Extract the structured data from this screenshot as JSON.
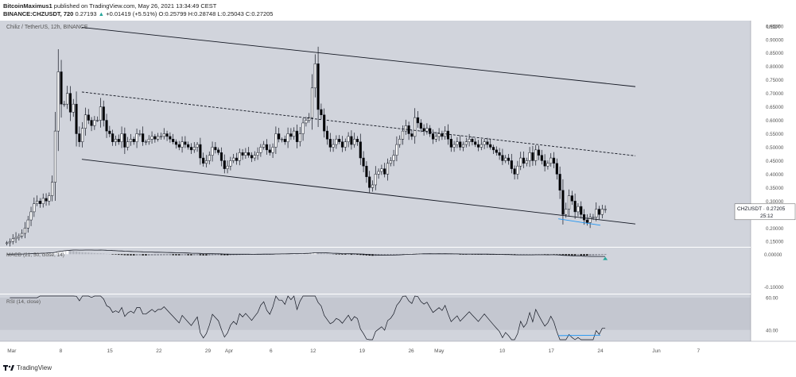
{
  "header": {
    "author": "BitcoinMaximus1",
    "published_text": "published on TradingView.com, May 26, 2021 13:34:49 CEST",
    "symbol": "BINANCE:CHZUSDT, 720",
    "change_arrow": "▲",
    "ohlc": {
      "o_label": "O:",
      "o": "0.25799",
      "h_label": "H:",
      "h": "0.28748",
      "l_label": "L:",
      "l": "0.25043",
      "c_label": "C:",
      "c": "0.27205"
    },
    "last": "0.27193",
    "change": "+0.01419 (+5.51%)"
  },
  "colors": {
    "price_bg": "#d1d4dc",
    "panel_bg": "#d1d4dc",
    "rsi_band": "#c4c7d0",
    "up_candle": "#ffffff",
    "down_candle": "#000000",
    "channel": "#131722",
    "support": "#2196f3",
    "macd_signal": "#131722",
    "rsi_line": "#131722",
    "arrow": "#26a69a"
  },
  "chart_data": {
    "type": "candlestick",
    "title": "Chiliz / TetherUS, 12h, BINANCE",
    "currency_label": "USDT",
    "ylim": [
      0.13,
      0.97
    ],
    "yticks": [
      0.15,
      0.2,
      0.25,
      0.3,
      0.35,
      0.4,
      0.45,
      0.5,
      0.55,
      0.6,
      0.65,
      0.7,
      0.75,
      0.8,
      0.85,
      0.9,
      0.95
    ],
    "ytick_labels": [
      "0.15000",
      "0.20000",
      "0.25000",
      "0.30000",
      "0.35000",
      "0.40000",
      "0.45000",
      "0.50000",
      "0.55000",
      "0.60000",
      "0.65000",
      "0.70000",
      "0.75000",
      "0.80000",
      "0.85000",
      "0.90000",
      "0.95000"
    ],
    "x_labels": [
      "Mar",
      "8",
      "15",
      "22",
      "29",
      "Apr",
      "6",
      "12",
      "19",
      "26",
      "May",
      "10",
      "17",
      "24",
      "Jun",
      "7"
    ],
    "x_label_days": [
      1,
      8,
      15,
      22,
      29,
      32,
      38,
      44,
      51,
      58,
      62,
      71,
      78,
      85,
      93,
      99
    ],
    "x_day_range": [
      0,
      106
    ],
    "last_price_label": "CHZUSDT",
    "last_price": "0.27205",
    "countdown": "25:12",
    "closes": [
      0.145,
      0.15,
      0.16,
      0.165,
      0.17,
      0.18,
      0.2,
      0.23,
      0.26,
      0.29,
      0.3,
      0.29,
      0.31,
      0.3,
      0.32,
      0.37,
      0.56,
      0.78,
      0.66,
      0.66,
      0.7,
      0.63,
      0.66,
      0.55,
      0.52,
      0.57,
      0.62,
      0.6,
      0.58,
      0.6,
      0.6,
      0.65,
      0.6,
      0.56,
      0.55,
      0.52,
      0.53,
      0.52,
      0.55,
      0.5,
      0.52,
      0.53,
      0.52,
      0.55,
      0.55,
      0.52,
      0.52,
      0.53,
      0.54,
      0.53,
      0.54,
      0.54,
      0.55,
      0.54,
      0.53,
      0.52,
      0.51,
      0.5,
      0.52,
      0.51,
      0.5,
      0.49,
      0.5,
      0.51,
      0.46,
      0.44,
      0.45,
      0.47,
      0.5,
      0.49,
      0.48,
      0.45,
      0.42,
      0.43,
      0.45,
      0.46,
      0.45,
      0.48,
      0.47,
      0.48,
      0.47,
      0.46,
      0.47,
      0.48,
      0.5,
      0.51,
      0.49,
      0.48,
      0.5,
      0.55,
      0.53,
      0.53,
      0.52,
      0.55,
      0.54,
      0.56,
      0.52,
      0.55,
      0.59,
      0.6,
      0.61,
      0.72,
      0.81,
      0.64,
      0.62,
      0.56,
      0.53,
      0.5,
      0.51,
      0.53,
      0.52,
      0.5,
      0.52,
      0.54,
      0.51,
      0.53,
      0.52,
      0.46,
      0.43,
      0.39,
      0.35,
      0.36,
      0.4,
      0.41,
      0.42,
      0.4,
      0.44,
      0.45,
      0.47,
      0.51,
      0.53,
      0.56,
      0.58,
      0.55,
      0.54,
      0.61,
      0.59,
      0.57,
      0.56,
      0.57,
      0.55,
      0.53,
      0.54,
      0.55,
      0.54,
      0.56,
      0.53,
      0.5,
      0.51,
      0.52,
      0.5,
      0.51,
      0.52,
      0.53,
      0.52,
      0.51,
      0.5,
      0.51,
      0.52,
      0.51,
      0.5,
      0.49,
      0.48,
      0.47,
      0.45,
      0.46,
      0.45,
      0.42,
      0.4,
      0.43,
      0.46,
      0.44,
      0.45,
      0.48,
      0.45,
      0.49,
      0.47,
      0.45,
      0.43,
      0.44,
      0.46,
      0.44,
      0.4,
      0.34,
      0.25,
      0.27,
      0.32,
      0.3,
      0.26,
      0.28,
      0.25,
      0.23,
      0.22,
      0.24,
      0.24,
      0.27,
      0.25,
      0.27,
      0.27
    ],
    "channel": {
      "upper": [
        [
          11,
          0.945
        ],
        [
          90,
          0.725
        ]
      ],
      "middle": [
        [
          11,
          0.705
        ],
        [
          90,
          0.468
        ]
      ],
      "lower": [
        [
          11,
          0.455
        ],
        [
          90,
          0.215
        ]
      ]
    },
    "support_line": [
      [
        79,
        0.234
      ],
      [
        85,
        0.21
      ]
    ],
    "macd": {
      "label": "MACD (21, 50, close, 14)",
      "ylim": [
        -0.12,
        0.02
      ],
      "yticks": [
        0,
        -0.1
      ],
      "ytick_labels": [
        "0.00000",
        "-0.10000"
      ]
    },
    "rsi": {
      "label": "RSI (14, close)",
      "ylim": [
        33,
        62
      ],
      "yticks": [
        60,
        40
      ],
      "ytick_labels": [
        "60.00",
        "40.00"
      ],
      "band": [
        30,
        70
      ],
      "divergence_line": [
        [
          79,
          36.5
        ],
        [
          85,
          36.8
        ]
      ]
    }
  },
  "footer": {
    "brand": "TradingView"
  }
}
